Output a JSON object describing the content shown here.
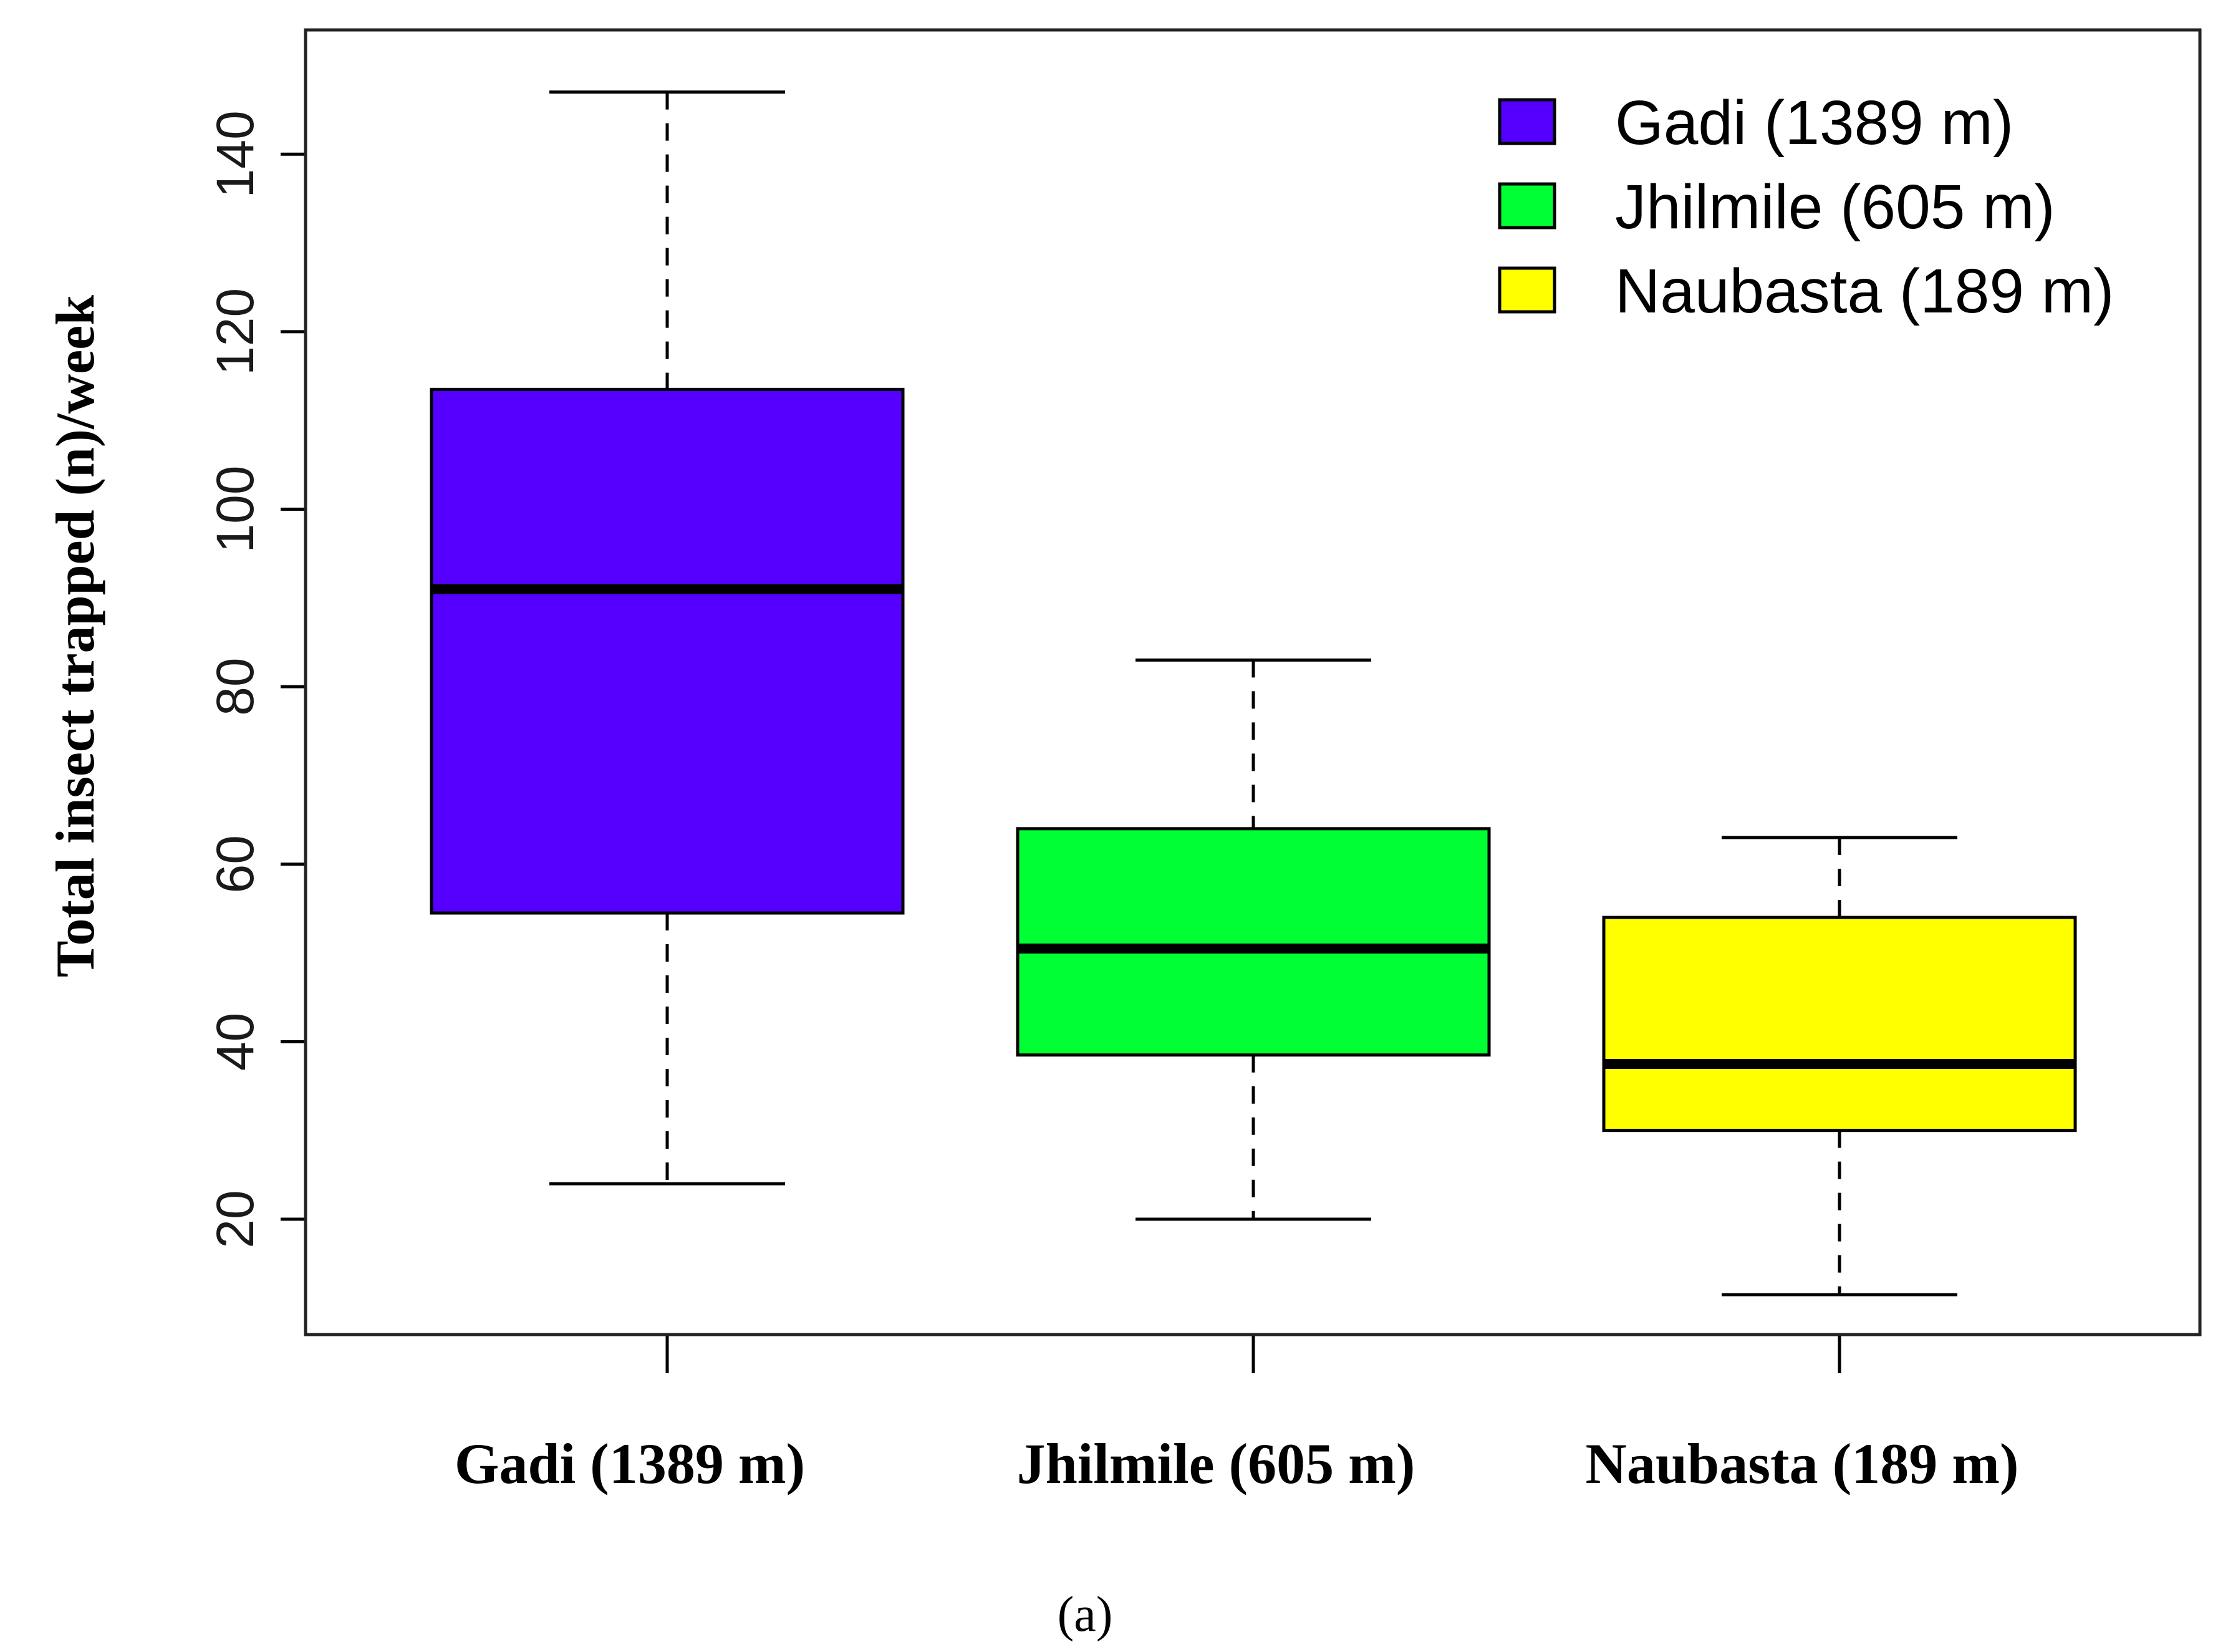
{
  "chart_data": {
    "type": "boxplot",
    "title": "",
    "xlabel": "",
    "ylabel": "Total insect trapped (n)/week",
    "ylim": [
      7,
      154
    ],
    "yticks": [
      20,
      40,
      60,
      80,
      100,
      120,
      140
    ],
    "grid": false,
    "legend_position": "top-right",
    "categories": [
      "Gadi (1389 m)",
      "Jhilmile (605 m)",
      "Naubasta (189 m)"
    ],
    "series": [
      {
        "name": "Gadi (1389 m)",
        "color": "#5500ff",
        "min": 24,
        "q1": 54.5,
        "median": 91,
        "q3": 113.5,
        "max": 147
      },
      {
        "name": "Jhilmile (605 m)",
        "color": "#00ff33",
        "min": 20,
        "q1": 38.5,
        "median": 50.5,
        "q3": 64,
        "max": 83
      },
      {
        "name": "Naubasta (189 m)",
        "color": "#ffff00",
        "min": 11.5,
        "q1": 30,
        "median": 37.5,
        "q3": 54,
        "max": 63
      }
    ],
    "caption": "(a)"
  }
}
